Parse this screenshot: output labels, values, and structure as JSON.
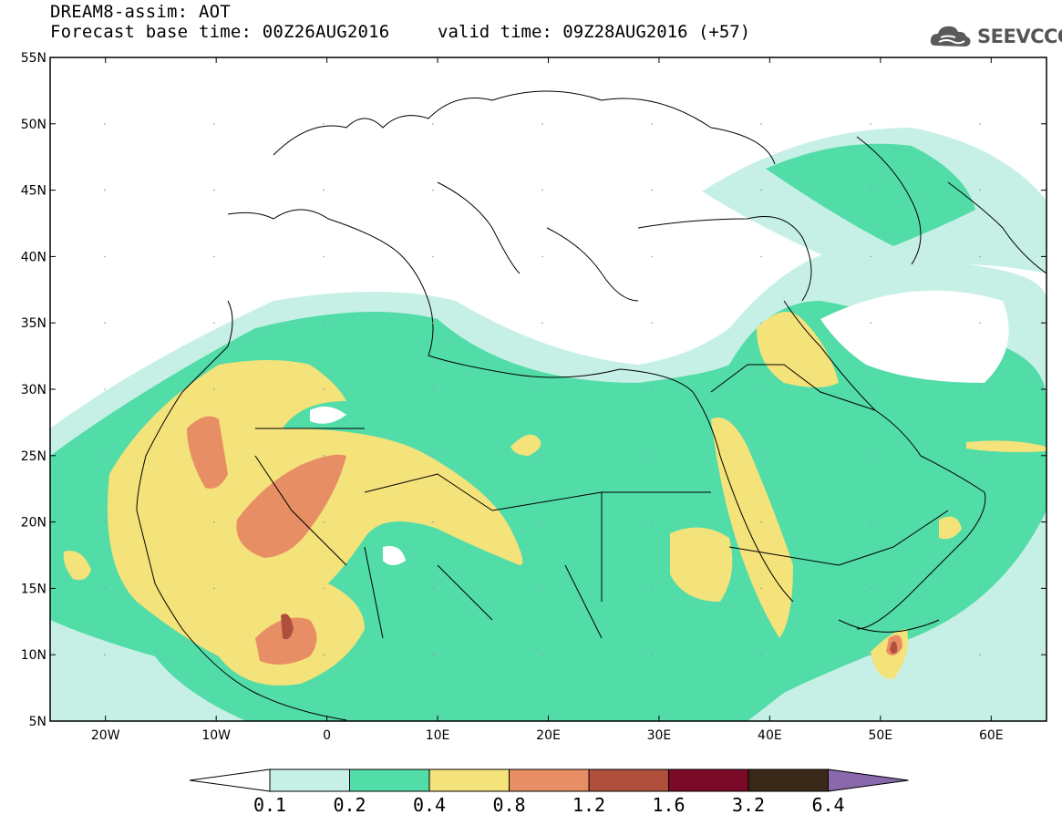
{
  "title": {
    "line1": "DREAM8-assim: AOT",
    "line2": "Forecast base time: 00Z26AUG2016",
    "valid": "valid time: 09Z28AUG2016 (+57)"
  },
  "logo": {
    "text": "SEEVCCC",
    "icon": "cloud-icon"
  },
  "map": {
    "lat_ticks": [
      "55N",
      "50N",
      "45N",
      "40N",
      "35N",
      "30N",
      "25N",
      "20N",
      "15N",
      "10N",
      "5N"
    ],
    "lon_ticks": [
      "20W",
      "10W",
      "0",
      "10E",
      "20E",
      "30E",
      "40E",
      "50E",
      "60E"
    ],
    "extent": {
      "lon_min": -25,
      "lon_max": 65,
      "lat_min": 5,
      "lat_max": 55
    }
  },
  "colorbar": {
    "labels": [
      "0.1",
      "0.2",
      "0.4",
      "0.8",
      "1.2",
      "1.6",
      "3.2",
      "6.4"
    ],
    "colors": [
      "#ffffff",
      "#c6f0e6",
      "#52dca8",
      "#f4e27a",
      "#e88e64",
      "#b0503c",
      "#7a0a28",
      "#3a2818",
      "#8a68ac"
    ]
  },
  "chart_data": {
    "type": "heatmap",
    "variable": "AOT",
    "levels": [
      0.1,
      0.2,
      0.4,
      0.8,
      1.2,
      1.6,
      3.2,
      6.4
    ],
    "xlim": [
      -25,
      65
    ],
    "ylim": [
      5,
      55
    ]
  }
}
